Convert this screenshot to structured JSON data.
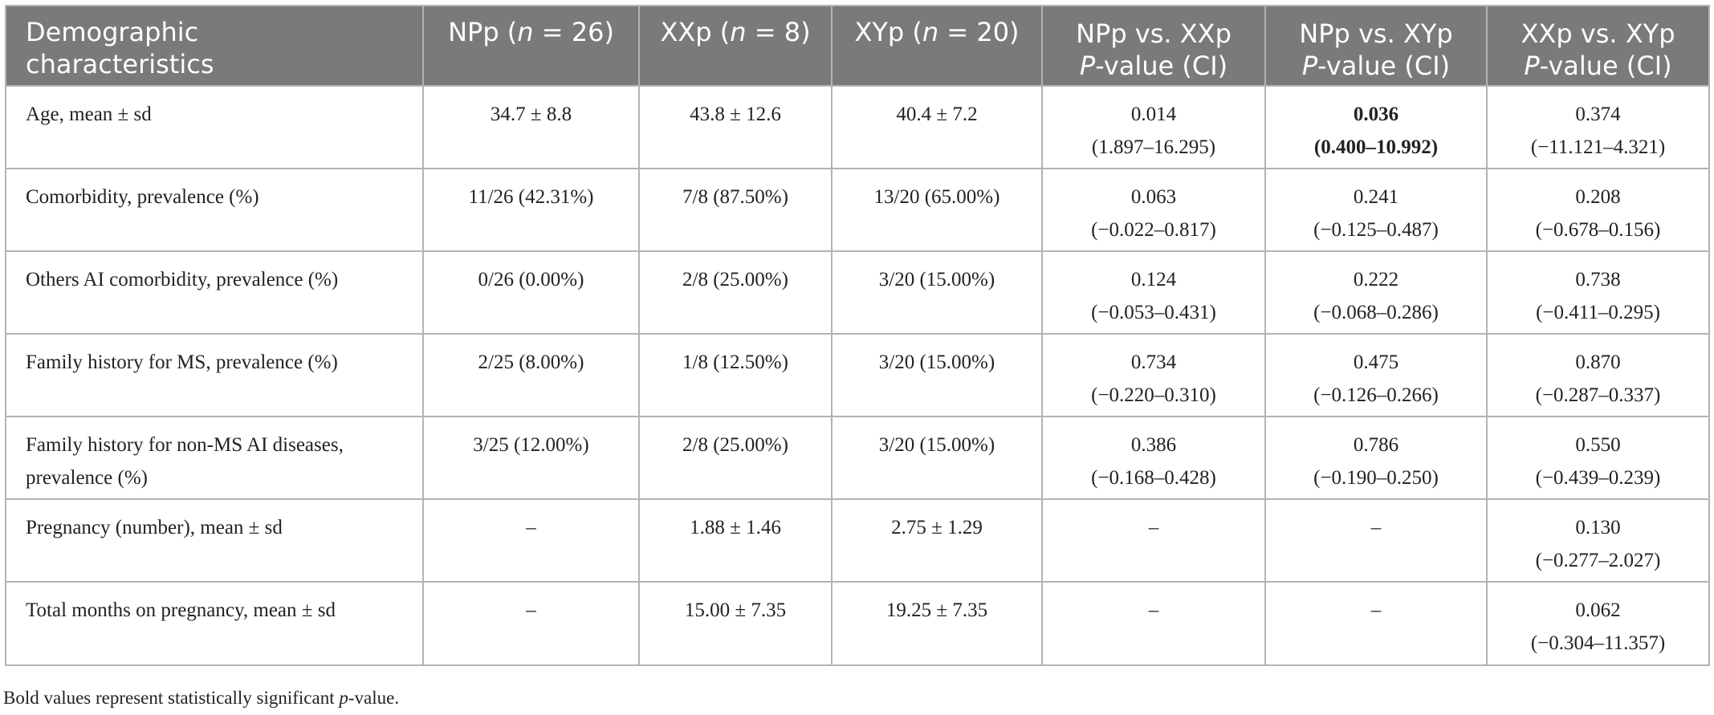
{
  "table": {
    "headers": {
      "c0": {
        "line1": "Demographic",
        "line2": "characteristics"
      },
      "c1": {
        "pre": "NPp (",
        "n": "n",
        "post": " = 26)"
      },
      "c2": {
        "pre": "XXp (",
        "n": "n",
        "post": " = 8)"
      },
      "c3": {
        "pre": "XYp (",
        "n": "n",
        "post": " = 20)"
      },
      "c4": {
        "line1": "NPp vs. XXp",
        "p": "P",
        "line2": "-value (CI)"
      },
      "c5": {
        "line1": "NPp vs. XYp",
        "p": "P",
        "line2": "-value (CI)"
      },
      "c6": {
        "line1": "XXp vs. XYp",
        "p": "P",
        "line2": "-value (CI)"
      }
    },
    "rows": [
      {
        "label": "Age, mean ± sd",
        "npp": "34.7 ± 8.8",
        "xxp": "43.8 ± 12.6",
        "xyp": "40.4 ± 7.2",
        "p1": "0.014",
        "ci1": "(1.897–16.295)",
        "p2": "0.036",
        "ci2": "(0.400–10.992)",
        "p3": "0.374",
        "ci3": "(−11.121–4.321)"
      },
      {
        "label": "Comorbidity, prevalence (%)",
        "npp": "11/26 (42.31%)",
        "xxp": "7/8 (87.50%)",
        "xyp": "13/20 (65.00%)",
        "p1": "0.063",
        "ci1": "(−0.022–0.817)",
        "p2": "0.241",
        "ci2": "(−0.125–0.487)",
        "p3": "0.208",
        "ci3": "(−0.678–0.156)"
      },
      {
        "label": "Others AI comorbidity, prevalence (%)",
        "npp": "0/26 (0.00%)",
        "xxp": "2/8 (25.00%)",
        "xyp": "3/20 (15.00%)",
        "p1": "0.124",
        "ci1": "(−0.053–0.431)",
        "p2": "0.222",
        "ci2": "(−0.068–0.286)",
        "p3": "0.738",
        "ci3": "(−0.411–0.295)"
      },
      {
        "label": "Family history for MS, prevalence (%)",
        "npp": "2/25 (8.00%)",
        "xxp": "1/8 (12.50%)",
        "xyp": "3/20 (15.00%)",
        "p1": "0.734",
        "ci1": "(−0.220–0.310)",
        "p2": "0.475",
        "ci2": "(−0.126–0.266)",
        "p3": "0.870",
        "ci3": "(−0.287–0.337)"
      },
      {
        "label_line1": "Family history for non-MS AI diseases,",
        "label_line2": "prevalence (%)",
        "npp": "3/25 (12.00%)",
        "xxp": "2/8 (25.00%)",
        "xyp": "3/20 (15.00%)",
        "p1": "0.386",
        "ci1": "(−0.168–0.428)",
        "p2": "0.786",
        "ci2": "(−0.190–0.250)",
        "p3": "0.550",
        "ci3": "(−0.439–0.239)"
      },
      {
        "label": "Pregnancy (number), mean ± sd",
        "npp": "–",
        "xxp": "1.88 ± 1.46",
        "xyp": "2.75 ± 1.29",
        "p1": "–",
        "p2": "–",
        "p3": "0.130",
        "ci3": "(−0.277–2.027)"
      },
      {
        "label": "Total months on pregnancy, mean ± sd",
        "npp": "–",
        "xxp": "15.00 ± 7.35",
        "xyp": "19.25 ± 7.35",
        "p1": "–",
        "p2": "–",
        "p3": "0.062",
        "ci3": "(−0.304–11.357)"
      }
    ]
  },
  "footnote": {
    "pre": "Bold values represent statistically significant ",
    "p": "p",
    "post": "-value."
  }
}
